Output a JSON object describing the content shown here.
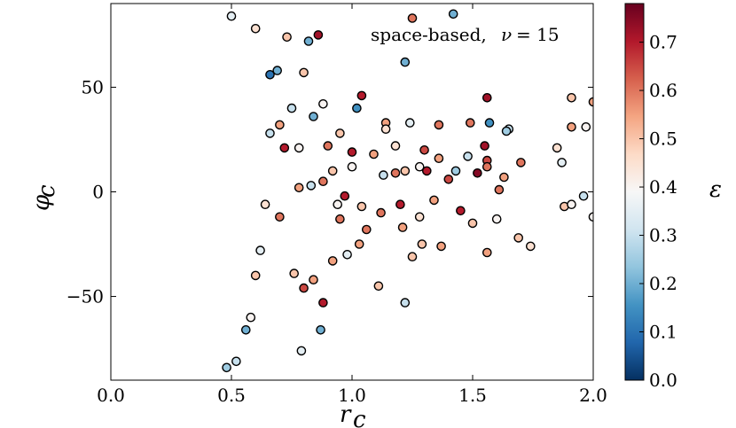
{
  "chart_data": {
    "type": "scatter",
    "annotation_prefix": "space-based, ",
    "annotation_symbol": "ν",
    "annotation_value": "= 15",
    "xlabel": "r",
    "xlabel_sub": "c",
    "ylabel": "φ",
    "ylabel_sub": "c",
    "xlim": [
      0.0,
      2.0
    ],
    "ylim": [
      -90,
      90
    ],
    "xticks": [
      0.0,
      0.5,
      1.0,
      1.5,
      2.0
    ],
    "xtick_labels": [
      "0.0",
      "0.5",
      "1.0",
      "1.5",
      "2.0"
    ],
    "yticks": [
      -50,
      0,
      50
    ],
    "ytick_labels": [
      "−50",
      "0",
      "50"
    ],
    "colorbar": {
      "label": "ε",
      "range": [
        0.0,
        0.78
      ],
      "ticks": [
        0.0,
        0.1,
        0.2,
        0.3,
        0.4,
        0.5,
        0.6,
        0.7
      ],
      "tick_labels": [
        "0.0",
        "0.1",
        "0.2",
        "0.3",
        "0.4",
        "0.5",
        "0.6",
        "0.7"
      ],
      "colormap": "RdBu_r",
      "colors": [
        "#053061",
        "#2166ac",
        "#4393c3",
        "#92c5de",
        "#d1e5f0",
        "#f7f7f7",
        "#fddbc7",
        "#f4a582",
        "#d6604d",
        "#b2182b",
        "#67001f"
      ]
    },
    "points": [
      [
        1.25,
        83,
        0.6
      ],
      [
        1.42,
        85,
        0.2
      ],
      [
        1.22,
        62,
        0.2
      ],
      [
        1.04,
        46,
        0.7
      ],
      [
        1.02,
        40,
        0.15
      ],
      [
        1.14,
        33,
        0.55
      ],
      [
        1.24,
        33,
        0.35
      ],
      [
        1.36,
        32,
        0.6
      ],
      [
        1.56,
        45,
        0.72
      ],
      [
        1.49,
        33,
        0.6
      ],
      [
        1.57,
        33,
        0.15
      ],
      [
        1.65,
        30,
        0.3
      ],
      [
        1.55,
        22,
        0.72
      ],
      [
        1.64,
        29,
        0.25
      ],
      [
        1.91,
        45,
        0.5
      ],
      [
        2.0,
        43,
        0.55
      ],
      [
        1.97,
        31,
        0.4
      ],
      [
        1.91,
        31,
        0.55
      ],
      [
        1.85,
        21,
        0.45
      ],
      [
        1.87,
        14,
        0.35
      ],
      [
        1.7,
        14,
        0.6
      ],
      [
        1.56,
        15,
        0.65
      ],
      [
        1.52,
        9,
        0.75
      ],
      [
        1.43,
        10,
        0.25
      ],
      [
        1.4,
        6,
        0.65
      ],
      [
        1.31,
        10,
        0.7
      ],
      [
        1.28,
        12,
        0.4
      ],
      [
        1.22,
        10,
        0.5
      ],
      [
        1.18,
        9,
        0.6
      ],
      [
        1.13,
        8,
        0.3
      ],
      [
        1.63,
        7,
        0.55
      ],
      [
        1.61,
        1,
        0.6
      ],
      [
        1.88,
        -7,
        0.5
      ],
      [
        1.91,
        -6,
        0.4
      ],
      [
        1.96,
        -2,
        0.3
      ],
      [
        2.0,
        -12,
        0.4
      ],
      [
        1.74,
        -26,
        0.45
      ],
      [
        1.56,
        -29,
        0.55
      ],
      [
        1.69,
        -22,
        0.5
      ],
      [
        1.45,
        -9,
        0.7
      ],
      [
        1.37,
        -26,
        0.55
      ],
      [
        1.29,
        -25,
        0.5
      ],
      [
        1.25,
        -31,
        0.5
      ],
      [
        1.21,
        -17,
        0.55
      ],
      [
        1.11,
        -45,
        0.5
      ],
      [
        1.22,
        -53,
        0.3
      ],
      [
        1.06,
        -18,
        0.6
      ],
      [
        1.03,
        -25,
        0.55
      ],
      [
        0.97,
        -2,
        0.7
      ],
      [
        0.95,
        -13,
        0.6
      ],
      [
        0.88,
        -53,
        0.7
      ],
      [
        0.87,
        -66,
        0.2
      ],
      [
        0.84,
        -42,
        0.55
      ],
      [
        0.79,
        -76,
        0.35
      ],
      [
        0.8,
        -46,
        0.65
      ],
      [
        0.76,
        -39,
        0.5
      ],
      [
        0.86,
        75,
        0.72
      ],
      [
        0.82,
        72,
        0.2
      ],
      [
        0.73,
        74,
        0.5
      ],
      [
        0.69,
        58,
        0.2
      ],
      [
        0.66,
        56,
        0.1
      ],
      [
        0.8,
        57,
        0.5
      ],
      [
        0.88,
        42,
        0.4
      ],
      [
        0.84,
        36,
        0.2
      ],
      [
        0.75,
        40,
        0.3
      ],
      [
        0.7,
        32,
        0.55
      ],
      [
        0.72,
        21,
        0.7
      ],
      [
        0.78,
        21,
        0.4
      ],
      [
        0.66,
        28,
        0.3
      ],
      [
        1.14,
        30,
        0.45
      ],
      [
        0.95,
        28,
        0.5
      ],
      [
        0.9,
        22,
        0.6
      ],
      [
        1.0,
        19,
        0.7
      ],
      [
        1.09,
        18,
        0.55
      ],
      [
        1.18,
        22,
        0.45
      ],
      [
        1.3,
        20,
        0.65
      ],
      [
        1.36,
        16,
        0.55
      ],
      [
        1.48,
        17,
        0.3
      ],
      [
        1.56,
        12,
        0.6
      ],
      [
        1.0,
        12,
        0.4
      ],
      [
        0.92,
        10,
        0.5
      ],
      [
        0.88,
        5,
        0.6
      ],
      [
        0.83,
        3,
        0.3
      ],
      [
        0.78,
        2,
        0.55
      ],
      [
        0.94,
        -6,
        0.4
      ],
      [
        1.04,
        -7,
        0.5
      ],
      [
        1.12,
        -10,
        0.6
      ],
      [
        1.2,
        -6,
        0.7
      ],
      [
        1.28,
        -12,
        0.45
      ],
      [
        1.34,
        -4,
        0.55
      ],
      [
        1.5,
        -15,
        0.5
      ],
      [
        1.6,
        -13,
        0.4
      ],
      [
        0.98,
        -30,
        0.35
      ],
      [
        0.92,
        -33,
        0.55
      ],
      [
        0.7,
        -12,
        0.6
      ],
      [
        0.64,
        -6,
        0.45
      ],
      [
        0.6,
        -40,
        0.5
      ],
      [
        0.62,
        -28,
        0.35
      ],
      [
        0.56,
        -66,
        0.2
      ],
      [
        0.52,
        -81,
        0.3
      ],
      [
        0.48,
        -84,
        0.25
      ],
      [
        0.58,
        -60,
        0.4
      ],
      [
        0.6,
        78,
        0.45
      ],
      [
        0.5,
        84,
        0.35
      ]
    ]
  }
}
